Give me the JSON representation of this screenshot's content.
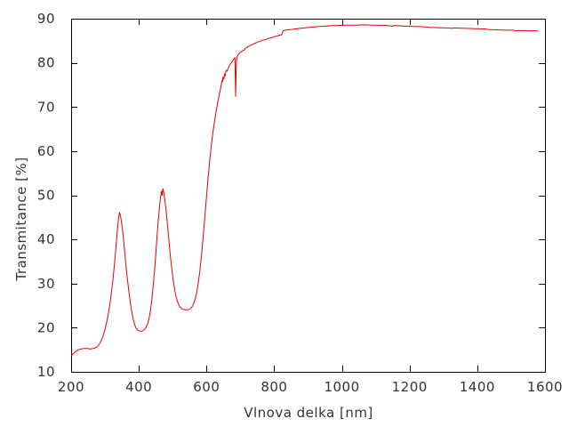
{
  "colors": {
    "background": "#ffffff",
    "frame": "#000000",
    "text": "#333333",
    "curve": "#e60000"
  },
  "chart_data": {
    "type": "line",
    "title": "",
    "xlabel": "Vlnova delka [nm]",
    "ylabel": "Transmitance [%]",
    "xlim": [
      200,
      1600
    ],
    "ylim": [
      10,
      90
    ],
    "xticks": [
      200,
      400,
      600,
      800,
      1000,
      1200,
      1400,
      1600
    ],
    "yticks": [
      10,
      20,
      30,
      40,
      50,
      60,
      70,
      80,
      90
    ],
    "grid": false,
    "legend": "none",
    "tick_style": "inward-mirrored",
    "series": [
      {
        "name": "transmitance",
        "color": "#e60000",
        "points": [
          [
            200,
            13.6
          ],
          [
            205,
            14.0
          ],
          [
            210,
            14.4
          ],
          [
            215,
            14.7
          ],
          [
            220,
            14.95
          ],
          [
            225,
            15.1
          ],
          [
            230,
            15.2
          ],
          [
            235,
            15.25
          ],
          [
            240,
            15.3
          ],
          [
            248,
            15.3
          ],
          [
            256,
            15.2
          ],
          [
            264,
            15.25
          ],
          [
            270,
            15.4
          ],
          [
            276,
            15.6
          ],
          [
            282,
            16.1
          ],
          [
            288,
            16.9
          ],
          [
            294,
            18.0
          ],
          [
            300,
            19.6
          ],
          [
            306,
            21.6
          ],
          [
            312,
            24.0
          ],
          [
            318,
            27.2
          ],
          [
            324,
            31.2
          ],
          [
            330,
            36.0
          ],
          [
            335,
            40.6
          ],
          [
            338,
            43.2
          ],
          [
            341,
            45.4
          ],
          [
            343,
            46.1
          ],
          [
            345,
            45.7
          ],
          [
            348,
            44.4
          ],
          [
            352,
            42.0
          ],
          [
            356,
            39.0
          ],
          [
            360,
            35.8
          ],
          [
            364,
            32.6
          ],
          [
            368,
            29.8
          ],
          [
            372,
            27.3
          ],
          [
            376,
            25.1
          ],
          [
            380,
            23.2
          ],
          [
            384,
            21.7
          ],
          [
            388,
            20.6
          ],
          [
            392,
            19.9
          ],
          [
            396,
            19.5
          ],
          [
            400,
            19.3
          ],
          [
            405,
            19.2
          ],
          [
            410,
            19.25
          ],
          [
            415,
            19.45
          ],
          [
            420,
            19.9
          ],
          [
            425,
            20.7
          ],
          [
            430,
            22.0
          ],
          [
            434,
            23.7
          ],
          [
            438,
            26.0
          ],
          [
            442,
            29.0
          ],
          [
            446,
            32.6
          ],
          [
            450,
            36.6
          ],
          [
            454,
            40.8
          ],
          [
            457,
            43.8
          ],
          [
            460,
            46.4
          ],
          [
            462,
            48.0
          ],
          [
            464,
            49.4
          ],
          [
            466,
            50.4
          ],
          [
            467,
            50.9
          ],
          [
            468,
            50.2
          ],
          [
            469,
            50.0
          ],
          [
            470,
            51.0
          ],
          [
            471,
            51.5
          ],
          [
            472,
            51.2
          ],
          [
            474,
            50.5
          ],
          [
            476,
            49.4
          ],
          [
            479,
            47.6
          ],
          [
            482,
            45.4
          ],
          [
            486,
            42.2
          ],
          [
            490,
            38.9
          ],
          [
            494,
            35.7
          ],
          [
            498,
            32.9
          ],
          [
            502,
            30.5
          ],
          [
            506,
            28.6
          ],
          [
            510,
            27.1
          ],
          [
            514,
            26.0
          ],
          [
            518,
            25.2
          ],
          [
            522,
            24.7
          ],
          [
            527,
            24.3
          ],
          [
            532,
            24.15
          ],
          [
            538,
            24.05
          ],
          [
            544,
            24.05
          ],
          [
            550,
            24.2
          ],
          [
            555,
            24.5
          ],
          [
            560,
            25.1
          ],
          [
            565,
            26.1
          ],
          [
            570,
            27.6
          ],
          [
            575,
            29.8
          ],
          [
            580,
            32.7
          ],
          [
            585,
            36.3
          ],
          [
            590,
            40.5
          ],
          [
            595,
            45.1
          ],
          [
            600,
            49.8
          ],
          [
            605,
            54.3
          ],
          [
            610,
            58.3
          ],
          [
            615,
            61.8
          ],
          [
            620,
            64.8
          ],
          [
            625,
            67.4
          ],
          [
            630,
            69.7
          ],
          [
            634,
            71.4
          ],
          [
            638,
            72.9
          ],
          [
            641,
            74.0
          ],
          [
            644,
            75.2
          ],
          [
            646,
            76.1
          ],
          [
            647,
            75.7
          ],
          [
            649,
            76.8
          ],
          [
            651,
            76.3
          ],
          [
            653,
            77.5
          ],
          [
            655,
            77.0
          ],
          [
            657,
            78.0
          ],
          [
            659,
            78.3
          ],
          [
            661,
            78.1
          ],
          [
            663,
            78.6
          ],
          [
            666,
            79.1
          ],
          [
            669,
            79.5
          ],
          [
            672,
            79.9
          ],
          [
            675,
            80.2
          ],
          [
            678,
            80.6
          ],
          [
            680,
            80.8
          ],
          [
            682,
            81.0
          ],
          [
            684,
            81.2
          ],
          [
            685,
            77.5
          ],
          [
            686,
            72.4
          ],
          [
            687,
            76.0
          ],
          [
            688,
            80.2
          ],
          [
            690,
            81.3
          ],
          [
            693,
            81.8
          ],
          [
            696,
            82.1
          ],
          [
            700,
            82.4
          ],
          [
            704,
            82.6
          ],
          [
            708,
            82.8
          ],
          [
            712,
            82.9
          ],
          [
            715,
            83.3
          ],
          [
            719,
            83.5
          ],
          [
            723,
            83.7
          ],
          [
            728,
            83.9
          ],
          [
            733,
            84.1
          ],
          [
            739,
            84.3
          ],
          [
            745,
            84.5
          ],
          [
            751,
            84.7
          ],
          [
            758,
            84.9
          ],
          [
            765,
            85.1
          ],
          [
            772,
            85.25
          ],
          [
            779,
            85.4
          ],
          [
            786,
            85.6
          ],
          [
            793,
            85.75
          ],
          [
            800,
            85.9
          ],
          [
            807,
            86.05
          ],
          [
            813,
            86.2
          ],
          [
            818,
            86.3
          ],
          [
            822,
            86.4
          ],
          [
            824,
            86.8
          ],
          [
            826,
            87.2
          ],
          [
            829,
            87.35
          ],
          [
            834,
            87.4
          ],
          [
            841,
            87.5
          ],
          [
            849,
            87.55
          ],
          [
            858,
            87.65
          ],
          [
            868,
            87.75
          ],
          [
            879,
            87.85
          ],
          [
            891,
            87.95
          ],
          [
            904,
            88.05
          ],
          [
            918,
            88.15
          ],
          [
            933,
            88.25
          ],
          [
            949,
            88.3
          ],
          [
            966,
            88.4
          ],
          [
            984,
            88.45
          ],
          [
            1003,
            88.5
          ],
          [
            1023,
            88.55
          ],
          [
            1044,
            88.55
          ],
          [
            1066,
            88.6
          ],
          [
            1089,
            88.55
          ],
          [
            1113,
            88.5
          ],
          [
            1138,
            88.45
          ],
          [
            1148,
            88.25
          ],
          [
            1153,
            88.45
          ],
          [
            1165,
            88.4
          ],
          [
            1180,
            88.35
          ],
          [
            1196,
            88.3
          ],
          [
            1213,
            88.25
          ],
          [
            1231,
            88.2
          ],
          [
            1250,
            88.1
          ],
          [
            1260,
            88.0
          ],
          [
            1270,
            88.0
          ],
          [
            1290,
            87.95
          ],
          [
            1310,
            87.9
          ],
          [
            1326,
            87.8
          ],
          [
            1333,
            87.9
          ],
          [
            1350,
            87.85
          ],
          [
            1370,
            87.8
          ],
          [
            1390,
            87.75
          ],
          [
            1410,
            87.7
          ],
          [
            1428,
            87.65
          ],
          [
            1433,
            87.55
          ],
          [
            1450,
            87.5
          ],
          [
            1470,
            87.45
          ],
          [
            1490,
            87.4
          ],
          [
            1505,
            87.4
          ],
          [
            1510,
            87.3
          ],
          [
            1530,
            87.3
          ],
          [
            1552,
            87.25
          ],
          [
            1570,
            87.25
          ],
          [
            1580,
            87.2
          ]
        ]
      }
    ]
  }
}
